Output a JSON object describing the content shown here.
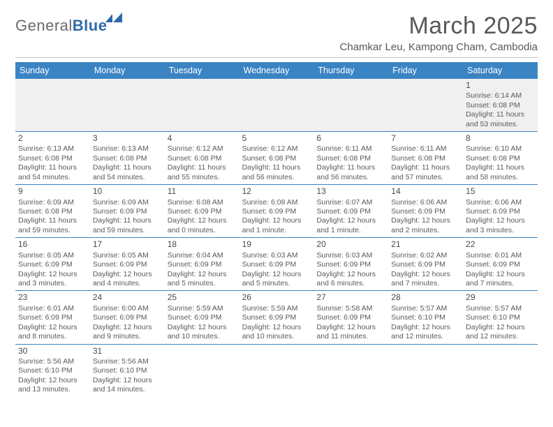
{
  "brand": {
    "part1": "General",
    "part2": "Blue"
  },
  "title": "March 2025",
  "location": "Chamkar Leu, Kampong Cham, Cambodia",
  "colors": {
    "header_bg": "#3b84c4",
    "header_text": "#ffffff",
    "divider": "#3b84c4",
    "text": "#5a5a5a",
    "title": "#585858"
  },
  "dayHeaders": [
    "Sunday",
    "Monday",
    "Tuesday",
    "Wednesday",
    "Thursday",
    "Friday",
    "Saturday"
  ],
  "weeks": [
    [
      null,
      null,
      null,
      null,
      null,
      null,
      {
        "n": "1",
        "sr": "6:14 AM",
        "ss": "6:08 PM",
        "dl": "11 hours and 53 minutes."
      }
    ],
    [
      {
        "n": "2",
        "sr": "6:13 AM",
        "ss": "6:08 PM",
        "dl": "11 hours and 54 minutes."
      },
      {
        "n": "3",
        "sr": "6:13 AM",
        "ss": "6:08 PM",
        "dl": "11 hours and 54 minutes."
      },
      {
        "n": "4",
        "sr": "6:12 AM",
        "ss": "6:08 PM",
        "dl": "11 hours and 55 minutes."
      },
      {
        "n": "5",
        "sr": "6:12 AM",
        "ss": "6:08 PM",
        "dl": "11 hours and 56 minutes."
      },
      {
        "n": "6",
        "sr": "6:11 AM",
        "ss": "6:08 PM",
        "dl": "11 hours and 56 minutes."
      },
      {
        "n": "7",
        "sr": "6:11 AM",
        "ss": "6:08 PM",
        "dl": "11 hours and 57 minutes."
      },
      {
        "n": "8",
        "sr": "6:10 AM",
        "ss": "6:08 PM",
        "dl": "11 hours and 58 minutes."
      }
    ],
    [
      {
        "n": "9",
        "sr": "6:09 AM",
        "ss": "6:08 PM",
        "dl": "11 hours and 59 minutes."
      },
      {
        "n": "10",
        "sr": "6:09 AM",
        "ss": "6:09 PM",
        "dl": "11 hours and 59 minutes."
      },
      {
        "n": "11",
        "sr": "6:08 AM",
        "ss": "6:09 PM",
        "dl": "12 hours and 0 minutes."
      },
      {
        "n": "12",
        "sr": "6:08 AM",
        "ss": "6:09 PM",
        "dl": "12 hours and 1 minute."
      },
      {
        "n": "13",
        "sr": "6:07 AM",
        "ss": "6:09 PM",
        "dl": "12 hours and 1 minute."
      },
      {
        "n": "14",
        "sr": "6:06 AM",
        "ss": "6:09 PM",
        "dl": "12 hours and 2 minutes."
      },
      {
        "n": "15",
        "sr": "6:06 AM",
        "ss": "6:09 PM",
        "dl": "12 hours and 3 minutes."
      }
    ],
    [
      {
        "n": "16",
        "sr": "6:05 AM",
        "ss": "6:09 PM",
        "dl": "12 hours and 3 minutes."
      },
      {
        "n": "17",
        "sr": "6:05 AM",
        "ss": "6:09 PM",
        "dl": "12 hours and 4 minutes."
      },
      {
        "n": "18",
        "sr": "6:04 AM",
        "ss": "6:09 PM",
        "dl": "12 hours and 5 minutes."
      },
      {
        "n": "19",
        "sr": "6:03 AM",
        "ss": "6:09 PM",
        "dl": "12 hours and 5 minutes."
      },
      {
        "n": "20",
        "sr": "6:03 AM",
        "ss": "6:09 PM",
        "dl": "12 hours and 6 minutes."
      },
      {
        "n": "21",
        "sr": "6:02 AM",
        "ss": "6:09 PM",
        "dl": "12 hours and 7 minutes."
      },
      {
        "n": "22",
        "sr": "6:01 AM",
        "ss": "6:09 PM",
        "dl": "12 hours and 7 minutes."
      }
    ],
    [
      {
        "n": "23",
        "sr": "6:01 AM",
        "ss": "6:09 PM",
        "dl": "12 hours and 8 minutes."
      },
      {
        "n": "24",
        "sr": "6:00 AM",
        "ss": "6:09 PM",
        "dl": "12 hours and 9 minutes."
      },
      {
        "n": "25",
        "sr": "5:59 AM",
        "ss": "6:09 PM",
        "dl": "12 hours and 10 minutes."
      },
      {
        "n": "26",
        "sr": "5:59 AM",
        "ss": "6:09 PM",
        "dl": "12 hours and 10 minutes."
      },
      {
        "n": "27",
        "sr": "5:58 AM",
        "ss": "6:09 PM",
        "dl": "12 hours and 11 minutes."
      },
      {
        "n": "28",
        "sr": "5:57 AM",
        "ss": "6:10 PM",
        "dl": "12 hours and 12 minutes."
      },
      {
        "n": "29",
        "sr": "5:57 AM",
        "ss": "6:10 PM",
        "dl": "12 hours and 12 minutes."
      }
    ],
    [
      {
        "n": "30",
        "sr": "5:56 AM",
        "ss": "6:10 PM",
        "dl": "12 hours and 13 minutes."
      },
      {
        "n": "31",
        "sr": "5:56 AM",
        "ss": "6:10 PM",
        "dl": "12 hours and 14 minutes."
      },
      null,
      null,
      null,
      null,
      null
    ]
  ]
}
